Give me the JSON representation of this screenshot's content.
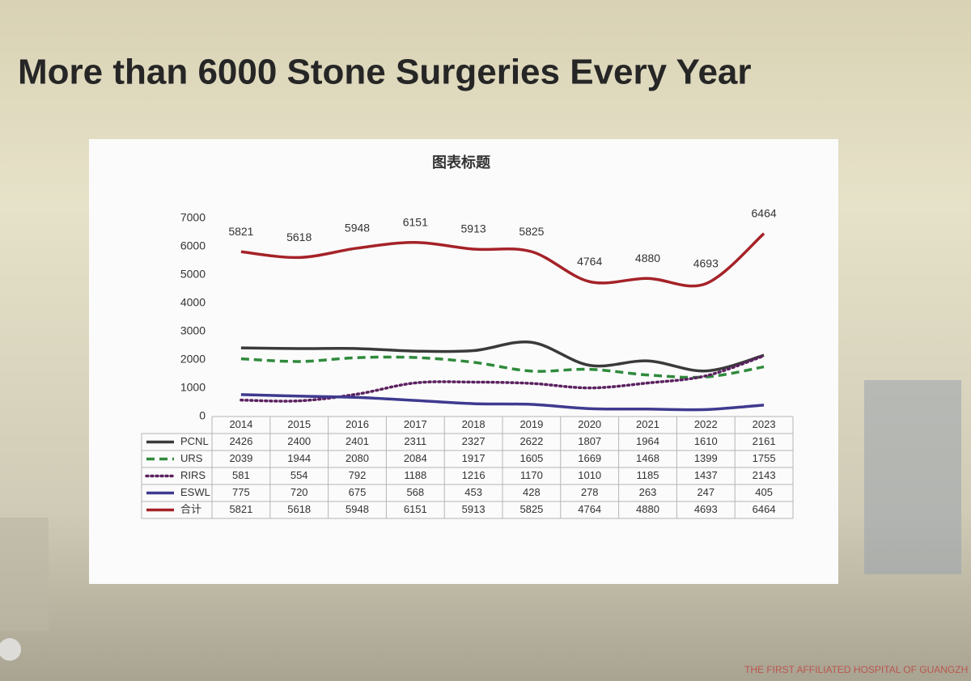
{
  "slide_title": "More than 6000 Stone Surgeries Every Year",
  "footer_text": "THE FIRST AFFILIATED HOSPITAL OF GUANGZH",
  "chart_data": {
    "type": "line",
    "title": "图表标题",
    "categories": [
      "2014",
      "2015",
      "2016",
      "2017",
      "2018",
      "2019",
      "2020",
      "2021",
      "2022",
      "2023"
    ],
    "series": [
      {
        "name": "PCNL",
        "color": "#3a3a3a",
        "dash": "solid",
        "values": [
          2426,
          2400,
          2401,
          2311,
          2327,
          2622,
          1807,
          1964,
          1610,
          2161
        ]
      },
      {
        "name": "URS",
        "color": "#2f8a3c",
        "dash": "dashed",
        "values": [
          2039,
          1944,
          2080,
          2084,
          1917,
          1605,
          1669,
          1468,
          1399,
          1755
        ]
      },
      {
        "name": "RIRS",
        "color": "#5b2260",
        "dash": "dotted",
        "values": [
          581,
          554,
          792,
          1188,
          1216,
          1170,
          1010,
          1185,
          1437,
          2143
        ]
      },
      {
        "name": "ESWL",
        "color": "#3f3a8f",
        "dash": "solid",
        "values": [
          775,
          720,
          675,
          568,
          453,
          428,
          278,
          263,
          247,
          405
        ]
      },
      {
        "name": "合计",
        "color": "#a52228",
        "dash": "solid",
        "data_labels": true,
        "values": [
          5821,
          5618,
          5948,
          6151,
          5913,
          5825,
          4764,
          4880,
          4693,
          6464
        ]
      }
    ],
    "ylim": [
      0,
      7000
    ],
    "yticks": [
      0,
      1000,
      2000,
      3000,
      4000,
      5000,
      6000,
      7000
    ],
    "grid": false,
    "data_table": true
  }
}
